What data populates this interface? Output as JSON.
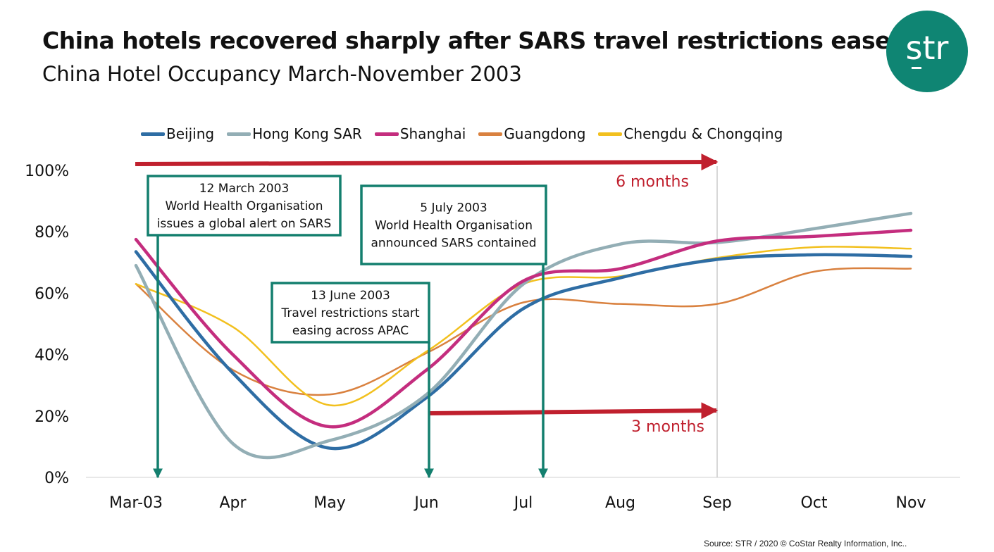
{
  "header": {
    "title": "China hotels recovered sharply after SARS travel restrictions eased",
    "subtitle": "China Hotel Occupancy March-November 2003"
  },
  "logo": {
    "text": "str",
    "color": "#0f8573"
  },
  "source": "Source: STR / 2020 © CoStar Realty Information, Inc..",
  "chart_data": {
    "type": "line",
    "x": [
      "Mar-03",
      "Apr",
      "May",
      "Jun",
      "Jul",
      "Aug",
      "Sep",
      "Oct",
      "Nov"
    ],
    "ylim": [
      0,
      100
    ],
    "yticks": [
      "0%",
      "20%",
      "40%",
      "60%",
      "80%",
      "100%"
    ],
    "grid": false,
    "legend_position": "top",
    "series": [
      {
        "name": "Beijing",
        "color": "#2e6da4",
        "width": 4.5,
        "values": [
          73.5,
          34,
          9.5,
          26,
          55,
          65,
          71,
          72.5,
          72
        ]
      },
      {
        "name": "Hong Kong SAR",
        "color": "#93aeb5",
        "width": 4.5,
        "values": [
          69,
          11,
          12,
          27,
          63,
          76,
          76.5,
          81,
          86
        ]
      },
      {
        "name": "Shanghai",
        "color": "#c42d7e",
        "width": 4.5,
        "values": [
          77.5,
          40,
          16.5,
          35,
          64,
          68,
          77,
          78.5,
          80.5
        ]
      },
      {
        "name": "Guangdong",
        "color": "#d9813f",
        "width": 2.5,
        "values": [
          63,
          35,
          27,
          40.5,
          57,
          56.5,
          56.5,
          67,
          68
        ]
      },
      {
        "name": "Chengdu & Chongqing",
        "color": "#f2c01e",
        "width": 2.5,
        "values": [
          63,
          49,
          23.5,
          41,
          63,
          65.5,
          71.5,
          75,
          74.5
        ]
      }
    ],
    "annotations": {
      "boxes": [
        {
          "lines": [
            "12 March 2003",
            "World Health Organisation",
            "issues a global alert on SARS"
          ]
        },
        {
          "lines": [
            "13 June 2003",
            "Travel restrictions start",
            "easing across APAC"
          ]
        },
        {
          "lines": [
            "5 July 2003",
            "World Health Organisation",
            "announced SARS contained"
          ]
        }
      ],
      "spans": [
        {
          "label": "6 months",
          "from": "Mar-03",
          "to": "Sep",
          "y": 100
        },
        {
          "label": "3 months",
          "from": "Jun",
          "to": "Sep",
          "y": 21
        }
      ],
      "marker_color": "#137f6e",
      "span_color": "#c0202e"
    }
  }
}
